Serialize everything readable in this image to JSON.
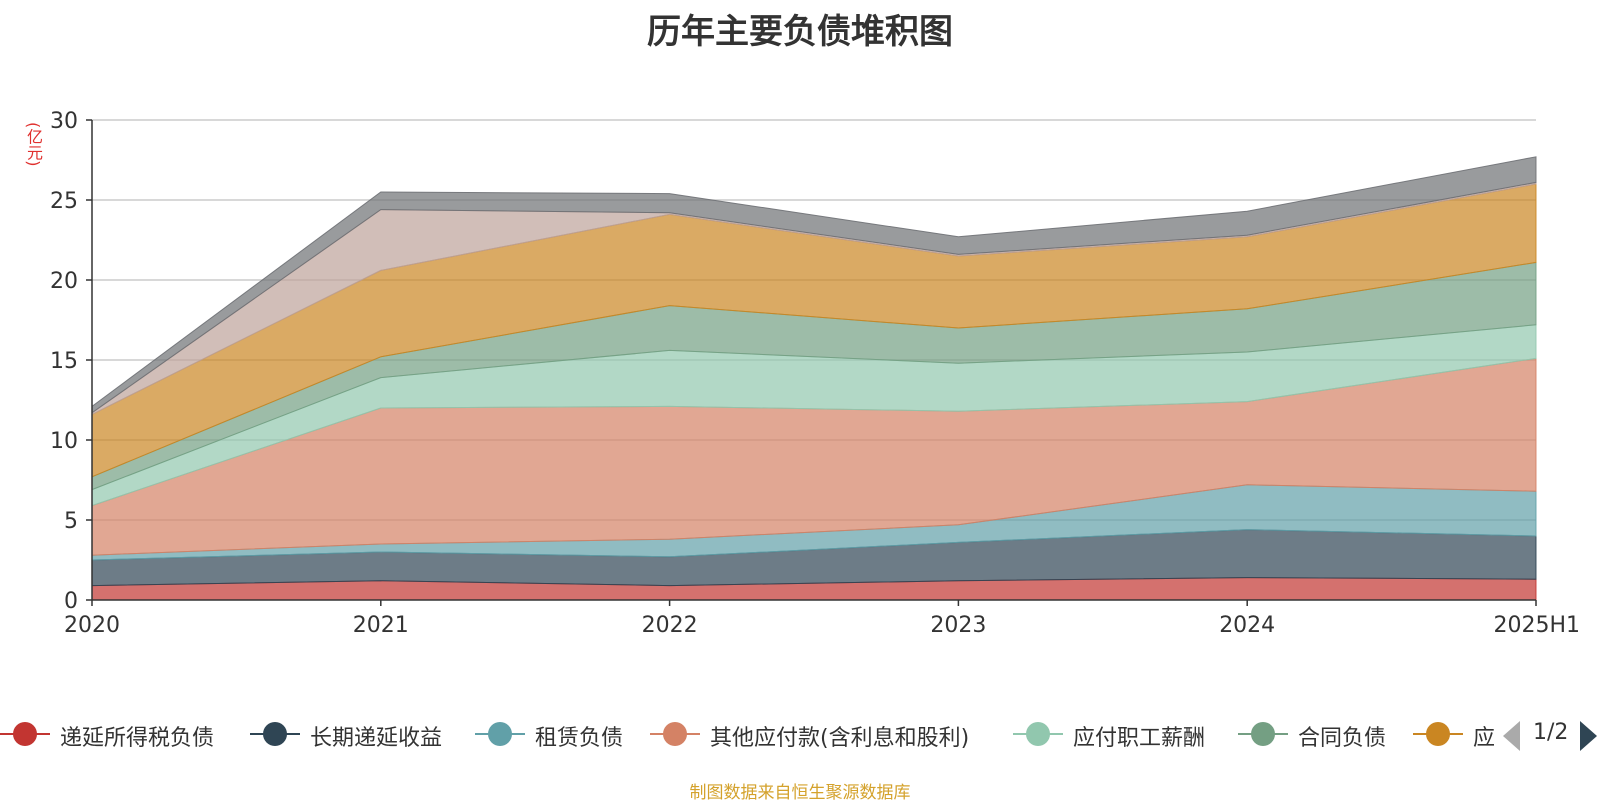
{
  "chart_data": {
    "type": "area",
    "stacked": true,
    "title": "历年主要负债堆积图",
    "ylabel": "(亿元)",
    "xlabel": "",
    "categories": [
      "2020",
      "2021",
      "2022",
      "2023",
      "2024",
      "2025H1"
    ],
    "ylim": [
      0,
      30
    ],
    "yticks": [
      0,
      5,
      10,
      15,
      20,
      25,
      30
    ],
    "grid": true,
    "legend_position": "bottom",
    "series": [
      {
        "name": "递延所得税负债",
        "color": "#c23531",
        "values": [
          0.9,
          1.2,
          0.9,
          1.2,
          1.4,
          1.3
        ]
      },
      {
        "name": "长期递延收益",
        "color": "#2f4554",
        "values": [
          1.6,
          1.8,
          1.8,
          2.4,
          3.0,
          2.7
        ]
      },
      {
        "name": "租赁负债",
        "color": "#61a0a8",
        "values": [
          0.3,
          0.5,
          1.1,
          1.1,
          2.8,
          2.8
        ]
      },
      {
        "name": "其他应付款(含利息和股利)",
        "color": "#d48265",
        "values": [
          3.1,
          8.5,
          8.3,
          7.1,
          5.2,
          8.3
        ]
      },
      {
        "name": "应付职工薪酬",
        "color": "#91c7ae",
        "values": [
          1.0,
          1.9,
          3.5,
          3.0,
          3.1,
          2.1
        ]
      },
      {
        "name": "合同负债",
        "color": "#749f83",
        "values": [
          0.8,
          1.3,
          2.8,
          2.2,
          2.7,
          3.9
        ]
      },
      {
        "name": "",
        "color": "#ca8622",
        "values": [
          3.9,
          5.4,
          5.7,
          4.5,
          4.5,
          4.9
        ]
      },
      {
        "name": "",
        "color": "#bda29a",
        "values": [
          0.1,
          3.8,
          0.1,
          0.1,
          0.1,
          0.1
        ]
      },
      {
        "name": "",
        "color": "#6e7074",
        "values": [
          0.4,
          1.1,
          1.2,
          1.1,
          1.5,
          1.6
        ]
      }
    ]
  },
  "legend_page": "1/2",
  "legend_truncated_label": "应",
  "source_text": "制图数据来自恒生聚源数据库"
}
